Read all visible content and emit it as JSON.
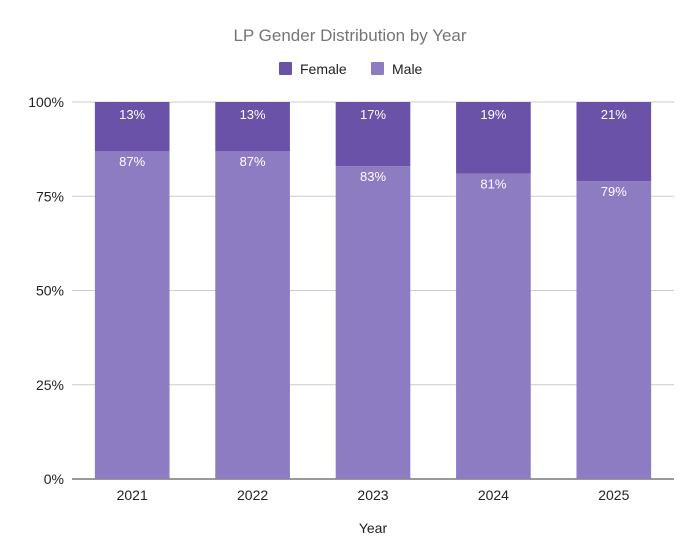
{
  "chart_data": {
    "type": "bar",
    "stacked": true,
    "title": "LP Gender Distribution by Year",
    "xlabel": "Year",
    "ylabel": "",
    "ylim": [
      0,
      100
    ],
    "categories": [
      "2021",
      "2022",
      "2023",
      "2024",
      "2025"
    ],
    "y_ticks": [
      "0%",
      "25%",
      "50%",
      "75%",
      "100%"
    ],
    "y_tick_values": [
      0,
      25,
      50,
      75,
      100
    ],
    "legend_position": "top",
    "grid": true,
    "series": [
      {
        "name": "Female",
        "color": "#6a52a8",
        "values": [
          13,
          13,
          17,
          19,
          21
        ],
        "labels": [
          "13%",
          "13%",
          "17%",
          "19%",
          "21%"
        ]
      },
      {
        "name": "Male",
        "color": "#8e7cc3",
        "values": [
          87,
          87,
          83,
          81,
          79
        ],
        "labels": [
          "87%",
          "87%",
          "83%",
          "81%",
          "79%"
        ]
      }
    ]
  }
}
